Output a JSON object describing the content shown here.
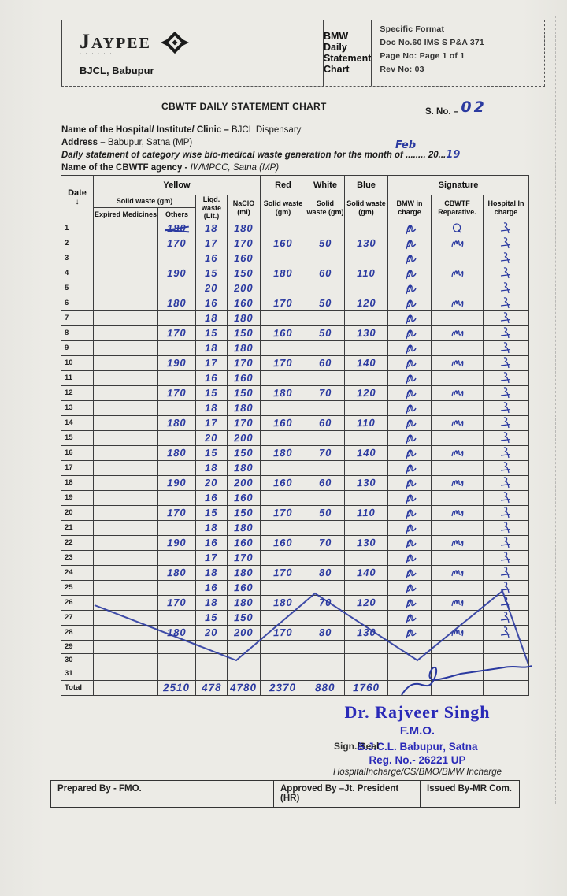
{
  "header": {
    "logo_text": "JAYPEE",
    "logo_sub": "· · · · · ·",
    "org": "BJCL, Babupur",
    "title": "BMW Daily Statement Chart",
    "format_lines": [
      "Specific Format",
      "Doc No.60 IMS S P&A 371",
      "Page No: Page 1 of 1",
      "Rev No: 03"
    ]
  },
  "chart_title": "CBWTF DAILY STATEMENT CHART",
  "serial": {
    "label": "S. No. –",
    "value": "02"
  },
  "info": {
    "hospital_label": "Name of the Hospital/ Institute/ Clinic –",
    "hospital_value": "BJCL Dispensary",
    "address_label": "Address –",
    "address_value": "Babupur, Satna (MP)",
    "statement_prefix": "Daily statement of category wise bio-medical waste generation for the month of ........",
    "year_text": " 20...",
    "month_handwritten": "Feb",
    "year_handwritten": "19",
    "agency_label": "Name of the CBWTF agency -",
    "agency_value": "IWMPCC, Satna (MP)"
  },
  "table": {
    "headers": {
      "date": "Date",
      "date_arrow": "↓",
      "yellow": "Yellow",
      "solid_waste_gm": "Solid waste (gm)",
      "expired": "Expired Medicines",
      "others": "Others",
      "liqd": "Liqd. waste (Lit.)",
      "naclo": "NaClO (ml)",
      "red": "Red",
      "white": "White",
      "blue": "Blue",
      "solid": "Solid waste (gm)",
      "signature": "Signature",
      "bmw": "BMW in charge",
      "cbwtf": "CBWTF Reparative.",
      "hospital": "Hospital In charge"
    },
    "rows": [
      {
        "d": "1",
        "exp": "",
        "oth": "180",
        "scribble": true,
        "liq": "18",
        "nac": "180",
        "red": "",
        "wht": "",
        "blu": "",
        "bmw": true,
        "cbw": "q",
        "hos": true
      },
      {
        "d": "2",
        "exp": "",
        "oth": "170",
        "liq": "17",
        "nac": "170",
        "red": "160",
        "wht": "50",
        "blu": "130",
        "bmw": true,
        "cbw": "m",
        "hos": true
      },
      {
        "d": "3",
        "exp": "",
        "oth": "",
        "liq": "16",
        "nac": "160",
        "red": "",
        "wht": "",
        "blu": "",
        "bmw": true,
        "cbw": "",
        "hos": true
      },
      {
        "d": "4",
        "exp": "",
        "oth": "190",
        "liq": "15",
        "nac": "150",
        "red": "180",
        "wht": "60",
        "blu": "110",
        "bmw": true,
        "cbw": "m",
        "hos": true
      },
      {
        "d": "5",
        "exp": "",
        "oth": "",
        "liq": "20",
        "nac": "200",
        "red": "",
        "wht": "",
        "blu": "",
        "bmw": true,
        "cbw": "",
        "hos": true
      },
      {
        "d": "6",
        "exp": "",
        "oth": "180",
        "liq": "16",
        "nac": "160",
        "red": "170",
        "wht": "50",
        "blu": "120",
        "bmw": true,
        "cbw": "m",
        "hos": true
      },
      {
        "d": "7",
        "exp": "",
        "oth": "",
        "liq": "18",
        "nac": "180",
        "red": "",
        "wht": "",
        "blu": "",
        "bmw": true,
        "cbw": "",
        "hos": true
      },
      {
        "d": "8",
        "exp": "",
        "oth": "170",
        "liq": "15",
        "nac": "150",
        "red": "160",
        "wht": "50",
        "blu": "130",
        "bmw": true,
        "cbw": "m",
        "hos": true
      },
      {
        "d": "9",
        "exp": "",
        "oth": "",
        "liq": "18",
        "nac": "180",
        "red": "",
        "wht": "",
        "blu": "",
        "bmw": true,
        "cbw": "",
        "hos": true
      },
      {
        "d": "10",
        "exp": "",
        "oth": "190",
        "liq": "17",
        "nac": "170",
        "red": "170",
        "wht": "60",
        "blu": "140",
        "bmw": true,
        "cbw": "m",
        "hos": true
      },
      {
        "d": "11",
        "exp": "",
        "oth": "",
        "liq": "16",
        "nac": "160",
        "red": "",
        "wht": "",
        "blu": "",
        "bmw": true,
        "cbw": "",
        "hos": true
      },
      {
        "d": "12",
        "exp": "",
        "oth": "170",
        "liq": "15",
        "nac": "150",
        "red": "180",
        "wht": "70",
        "blu": "120",
        "bmw": true,
        "cbw": "m",
        "hos": true
      },
      {
        "d": "13",
        "exp": "",
        "oth": "",
        "liq": "18",
        "nac": "180",
        "red": "",
        "wht": "",
        "blu": "",
        "bmw": true,
        "cbw": "",
        "hos": true
      },
      {
        "d": "14",
        "exp": "",
        "oth": "180",
        "liq": "17",
        "nac": "170",
        "red": "160",
        "wht": "60",
        "blu": "110",
        "bmw": true,
        "cbw": "m",
        "hos": true
      },
      {
        "d": "15",
        "exp": "",
        "oth": "",
        "liq": "20",
        "nac": "200",
        "red": "",
        "wht": "",
        "blu": "",
        "bmw": true,
        "cbw": "",
        "hos": true
      },
      {
        "d": "16",
        "exp": "",
        "oth": "180",
        "liq": "15",
        "nac": "150",
        "red": "180",
        "wht": "70",
        "blu": "140",
        "bmw": true,
        "cbw": "m",
        "hos": true
      },
      {
        "d": "17",
        "exp": "",
        "oth": "",
        "liq": "18",
        "nac": "180",
        "red": "",
        "wht": "",
        "blu": "",
        "bmw": true,
        "cbw": "",
        "hos": true
      },
      {
        "d": "18",
        "exp": "",
        "oth": "190",
        "liq": "20",
        "nac": "200",
        "red": "160",
        "wht": "60",
        "blu": "130",
        "bmw": true,
        "cbw": "m",
        "hos": true
      },
      {
        "d": "19",
        "exp": "",
        "oth": "",
        "liq": "16",
        "nac": "160",
        "red": "",
        "wht": "",
        "blu": "",
        "bmw": true,
        "cbw": "",
        "hos": true
      },
      {
        "d": "20",
        "exp": "",
        "oth": "170",
        "liq": "15",
        "nac": "150",
        "red": "170",
        "wht": "50",
        "blu": "110",
        "bmw": true,
        "cbw": "m",
        "hos": true
      },
      {
        "d": "21",
        "exp": "",
        "oth": "",
        "liq": "18",
        "nac": "180",
        "red": "",
        "wht": "",
        "blu": "",
        "bmw": true,
        "cbw": "",
        "hos": true
      },
      {
        "d": "22",
        "exp": "",
        "oth": "190",
        "liq": "16",
        "nac": "160",
        "red": "160",
        "wht": "70",
        "blu": "130",
        "bmw": true,
        "cbw": "m",
        "hos": true
      },
      {
        "d": "23",
        "exp": "",
        "oth": "",
        "liq": "17",
        "nac": "170",
        "red": "",
        "wht": "",
        "blu": "",
        "bmw": true,
        "cbw": "",
        "hos": true
      },
      {
        "d": "24",
        "exp": "",
        "oth": "180",
        "liq": "18",
        "nac": "180",
        "red": "170",
        "wht": "80",
        "blu": "140",
        "bmw": true,
        "cbw": "m",
        "hos": true
      },
      {
        "d": "25",
        "exp": "",
        "oth": "",
        "liq": "16",
        "nac": "160",
        "red": "",
        "wht": "",
        "blu": "",
        "bmw": true,
        "cbw": "",
        "hos": true
      },
      {
        "d": "26",
        "exp": "",
        "oth": "170",
        "liq": "18",
        "nac": "180",
        "red": "180",
        "wht": "70",
        "blu": "120",
        "bmw": true,
        "cbw": "m",
        "hos": true
      },
      {
        "d": "27",
        "exp": "",
        "oth": "",
        "liq": "15",
        "nac": "150",
        "red": "",
        "wht": "",
        "blu": "",
        "bmw": true,
        "cbw": "",
        "hos": true
      },
      {
        "d": "28",
        "exp": "",
        "oth": "180",
        "liq": "20",
        "nac": "200",
        "red": "170",
        "wht": "80",
        "blu": "130",
        "bmw": true,
        "cbw": "m",
        "hos": true
      },
      {
        "d": "29",
        "exp": "",
        "oth": "",
        "liq": "",
        "nac": "",
        "red": "",
        "wht": "",
        "blu": "",
        "bmw": false,
        "cbw": "",
        "hos": false
      },
      {
        "d": "30",
        "exp": "",
        "oth": "",
        "liq": "",
        "nac": "",
        "red": "",
        "wht": "",
        "blu": "",
        "bmw": false,
        "cbw": "",
        "hos": false
      },
      {
        "d": "31",
        "exp": "",
        "oth": "",
        "liq": "",
        "nac": "",
        "red": "",
        "wht": "",
        "blu": "",
        "bmw": false,
        "cbw": "",
        "hos": false
      },
      {
        "d": "Total",
        "total": true,
        "exp": "",
        "oth": "2510",
        "liq": "478",
        "nac": "4780",
        "red": "2370",
        "wht": "880",
        "blu": "1760",
        "bmw": false,
        "cbw": "",
        "hos": false
      }
    ]
  },
  "stamp": {
    "name": "Dr. Rajveer Singh",
    "designation": "F.M.O.",
    "org_line": "B.J.C.L. Babupur, Satna",
    "seal_print": "Sign./Seal",
    "reg": "Reg. No.- 26221 UP",
    "incharge": "HospitalIncharge/CS/BMO/BMW Incharge"
  },
  "footer": {
    "prepared": "Prepared By - FMO.",
    "approved": "Approved By –Jt. President (HR)",
    "issued": "Issued By-MR Com."
  },
  "colors": {
    "ink": "#2b3aa0",
    "stamp": "#2a2ab8",
    "paper": "#e9e8e3"
  }
}
